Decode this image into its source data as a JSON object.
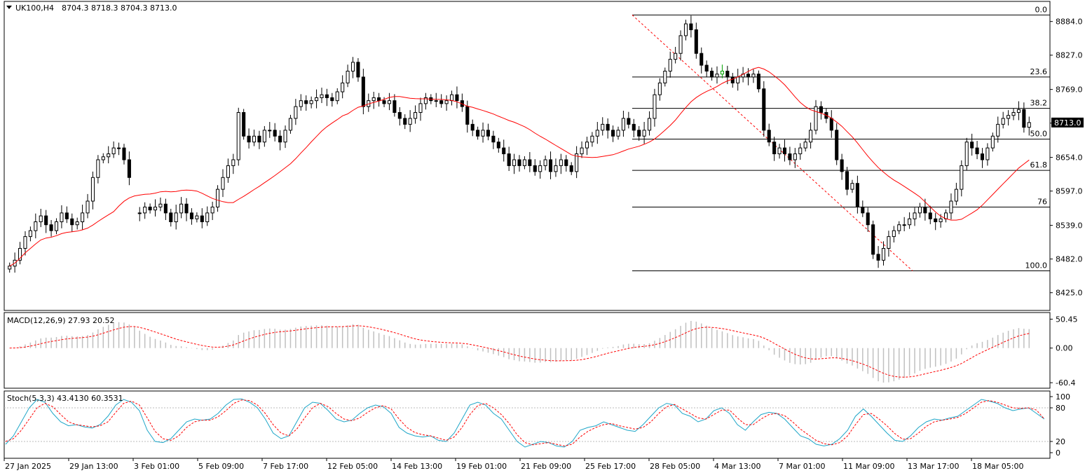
{
  "header": {
    "symbol": "UK100,H4",
    "ohlc": "8704.3 8718.3 8704.3 8713.0"
  },
  "colors": {
    "grid": "#000000",
    "sma": "#ff0000",
    "fib": "#000000",
    "fib_trend": "#ff0000",
    "macd_hist": "#c0c0c0",
    "macd_signal": "#ff0000",
    "stoch_main": "#1ea6c8",
    "stoch_signal": "#ff0000",
    "price_tag_bg": "#000000",
    "price_tag_fg": "#ffffff",
    "green_candle": "#00a000"
  },
  "chart_data": [
    {
      "type": "candlestick",
      "panel": "price",
      "title": "UK100,H4",
      "ylim": [
        8395,
        8918
      ],
      "y_ticks": [
        "8884.0",
        "8827.0",
        "8769.0",
        "8712.0",
        "8654.0",
        "8597.0",
        "8539.0",
        "8482.0",
        "8425.0"
      ],
      "y_tick_values": [
        8884.0,
        8827.0,
        8769.0,
        8712.0,
        8654.0,
        8597.0,
        8539.0,
        8482.0,
        8425.0
      ],
      "current_price": "8713.0",
      "x_labels": [
        "27 Jan 2025",
        "29 Jan 13:00",
        "3 Feb 01:00",
        "5 Feb 09:00",
        "7 Feb 17:00",
        "12 Feb 05:00",
        "14 Feb 13:00",
        "19 Feb 01:00",
        "21 Feb 09:00",
        "25 Feb 17:00",
        "28 Feb 05:00",
        "4 Mar 13:00",
        "7 Mar 01:00",
        "11 Mar 09:00",
        "13 Mar 17:00",
        "18 Mar 05:00"
      ],
      "closes": [
        8470,
        8480,
        8500,
        8520,
        8530,
        8545,
        8555,
        8540,
        8530,
        8545,
        8560,
        8550,
        8540,
        8545,
        8560,
        8580,
        8620,
        8650,
        8655,
        8660,
        8670,
        8670,
        8650,
        8620,
        null,
        8560,
        8570,
        8565,
        8570,
        8575,
        8560,
        8545,
        8560,
        8575,
        8560,
        8550,
        8555,
        8545,
        8560,
        8570,
        8600,
        8620,
        8640,
        8650,
        8730,
        8690,
        8680,
        8690,
        8680,
        8700,
        8700,
        8690,
        8680,
        8700,
        8720,
        8740,
        8750,
        8745,
        8750,
        8755,
        8760,
        8755,
        8750,
        8765,
        8780,
        8800,
        8815,
        8790,
        8740,
        8750,
        8755,
        8750,
        8745,
        8750,
        8730,
        8720,
        8710,
        8720,
        8730,
        8745,
        8755,
        8750,
        8750,
        8745,
        8750,
        8760,
        8750,
        8740,
        8710,
        8700,
        8690,
        8700,
        8690,
        8680,
        8670,
        8660,
        8640,
        8650,
        8640,
        8650,
        8640,
        8630,
        8640,
        8650,
        8630,
        8640,
        8650,
        8640,
        8630,
        8660,
        8670,
        8680,
        8690,
        8700,
        8710,
        8700,
        8690,
        8700,
        8720,
        8710,
        8700,
        8690,
        8700,
        8720,
        8760,
        8780,
        8800,
        8820,
        8830,
        8860,
        8880,
        8870,
        8830,
        8810,
        8800,
        8790,
        8795,
        8800,
        8790,
        8780,
        8790,
        8795,
        8790,
        8795,
        8770,
        8700,
        8680,
        8660,
        8670,
        8660,
        8650,
        8660,
        8670,
        8680,
        8700,
        8740,
        8730,
        8720,
        8700,
        8650,
        8630,
        8600,
        8610,
        8570,
        8560,
        8540,
        8490,
        8480,
        8500,
        8520,
        8530,
        8540,
        8540,
        8550,
        8560,
        8570,
        8560,
        8550,
        8545,
        8550,
        8560,
        8580,
        8600,
        8640,
        8680,
        8670,
        8660,
        8650,
        8670,
        8690,
        8710,
        8720,
        8725,
        8730,
        8735,
        8705,
        8713
      ],
      "sma_period": 21,
      "fibonacci": {
        "levels": [
          {
            "label": "0.0",
            "price": 8895
          },
          {
            "label": "23.6",
            "price": 8790
          },
          {
            "label": "38.2",
            "price": 8737
          },
          {
            "label": "50.0",
            "price": 8685
          },
          {
            "label": "61.8",
            "price": 8632
          },
          {
            "label": "76",
            "price": 8570
          },
          {
            "label": "100.0",
            "price": 8462
          }
        ]
      }
    },
    {
      "type": "bar+line",
      "panel": "macd",
      "title": "MACD(12,26,9) 27.93 20.52",
      "y_ticks": [
        "50.45",
        "0.00",
        "-60.4"
      ],
      "y_tick_values": [
        50.45,
        0.0,
        -60.4
      ],
      "ylim": [
        -70,
        62
      ]
    },
    {
      "type": "line",
      "panel": "stochastic",
      "title": "Stoch(5,3,3) 43.4130 60.3531",
      "y_ticks": [
        "100",
        "80",
        "20",
        "0"
      ],
      "y_tick_values": [
        100,
        80,
        20,
        0
      ],
      "ylim": [
        -10,
        110
      ],
      "main": [
        15,
        30,
        55,
        80,
        95,
        90,
        70,
        55,
        48,
        50,
        46,
        44,
        50,
        65,
        85,
        95,
        90,
        75,
        40,
        20,
        18,
        25,
        40,
        55,
        60,
        58,
        60,
        70,
        85,
        95,
        96,
        90,
        80,
        60,
        35,
        25,
        30,
        55,
        80,
        90,
        88,
        75,
        60,
        55,
        58,
        70,
        80,
        85,
        82,
        70,
        45,
        35,
        30,
        28,
        30,
        22,
        20,
        35,
        60,
        85,
        90,
        85,
        70,
        60,
        40,
        20,
        10,
        15,
        20,
        18,
        12,
        10,
        20,
        40,
        45,
        48,
        55,
        50,
        45,
        40,
        38,
        50,
        65,
        80,
        88,
        85,
        70,
        65,
        55,
        60,
        75,
        80,
        70,
        50,
        40,
        55,
        68,
        72,
        70,
        60,
        45,
        30,
        25,
        15,
        12,
        15,
        25,
        40,
        65,
        78,
        65,
        50,
        35,
        22,
        20,
        30,
        45,
        55,
        60,
        58,
        62,
        65,
        75,
        85,
        95,
        92,
        88,
        80,
        75,
        78,
        80,
        70,
        60
      ],
      "signal": [
        20,
        25,
        40,
        60,
        80,
        88,
        82,
        68,
        55,
        50,
        48,
        46,
        48,
        55,
        72,
        88,
        92,
        85,
        62,
        38,
        25,
        22,
        30,
        45,
        55,
        58,
        58,
        64,
        75,
        88,
        94,
        93,
        85,
        70,
        50,
        35,
        30,
        42,
        62,
        80,
        88,
        82,
        70,
        60,
        57,
        62,
        72,
        80,
        84,
        78,
        60,
        45,
        36,
        32,
        30,
        26,
        22,
        28,
        45,
        68,
        84,
        88,
        80,
        68,
        52,
        32,
        18,
        14,
        16,
        18,
        15,
        12,
        15,
        28,
        38,
        45,
        50,
        52,
        48,
        45,
        42,
        45,
        55,
        70,
        82,
        86,
        78,
        70,
        62,
        60,
        68,
        76,
        76,
        62,
        50,
        50,
        60,
        68,
        70,
        66,
        55,
        42,
        32,
        22,
        16,
        14,
        18,
        30,
        50,
        68,
        70,
        60,
        48,
        34,
        24,
        25,
        35,
        47,
        55,
        58,
        60,
        63,
        70,
        80,
        90,
        93,
        90,
        85,
        80,
        79,
        80,
        76,
        60
      ]
    }
  ]
}
